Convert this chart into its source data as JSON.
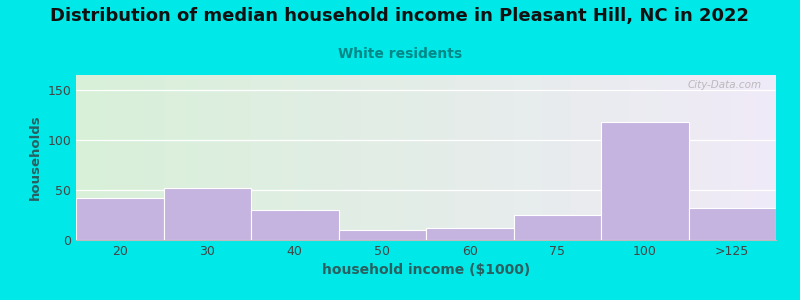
{
  "title": "Distribution of median household income in Pleasant Hill, NC in 2022",
  "subtitle": "White residents",
  "xlabel": "household income ($1000)",
  "ylabel": "households",
  "categories": [
    "20",
    "30",
    "40",
    "50",
    "60",
    "75",
    "100",
    ">125"
  ],
  "values": [
    42,
    52,
    30,
    10,
    12,
    25,
    118,
    32
  ],
  "bar_color": "#c5b3e0",
  "background_outer": "#00e8e8",
  "plot_bg_left": "#d8f0d8",
  "plot_bg_right": "#f0eaf8",
  "title_fontsize": 13,
  "subtitle_fontsize": 10,
  "subtitle_color": "#008888",
  "ylabel_color": "#2a6060",
  "xlabel_color": "#2a6060",
  "tick_color": "#444444",
  "ylim": [
    0,
    165
  ],
  "yticks": [
    0,
    50,
    100,
    150
  ],
  "watermark": "City-Data.com",
  "grid_color": "#dddddd"
}
